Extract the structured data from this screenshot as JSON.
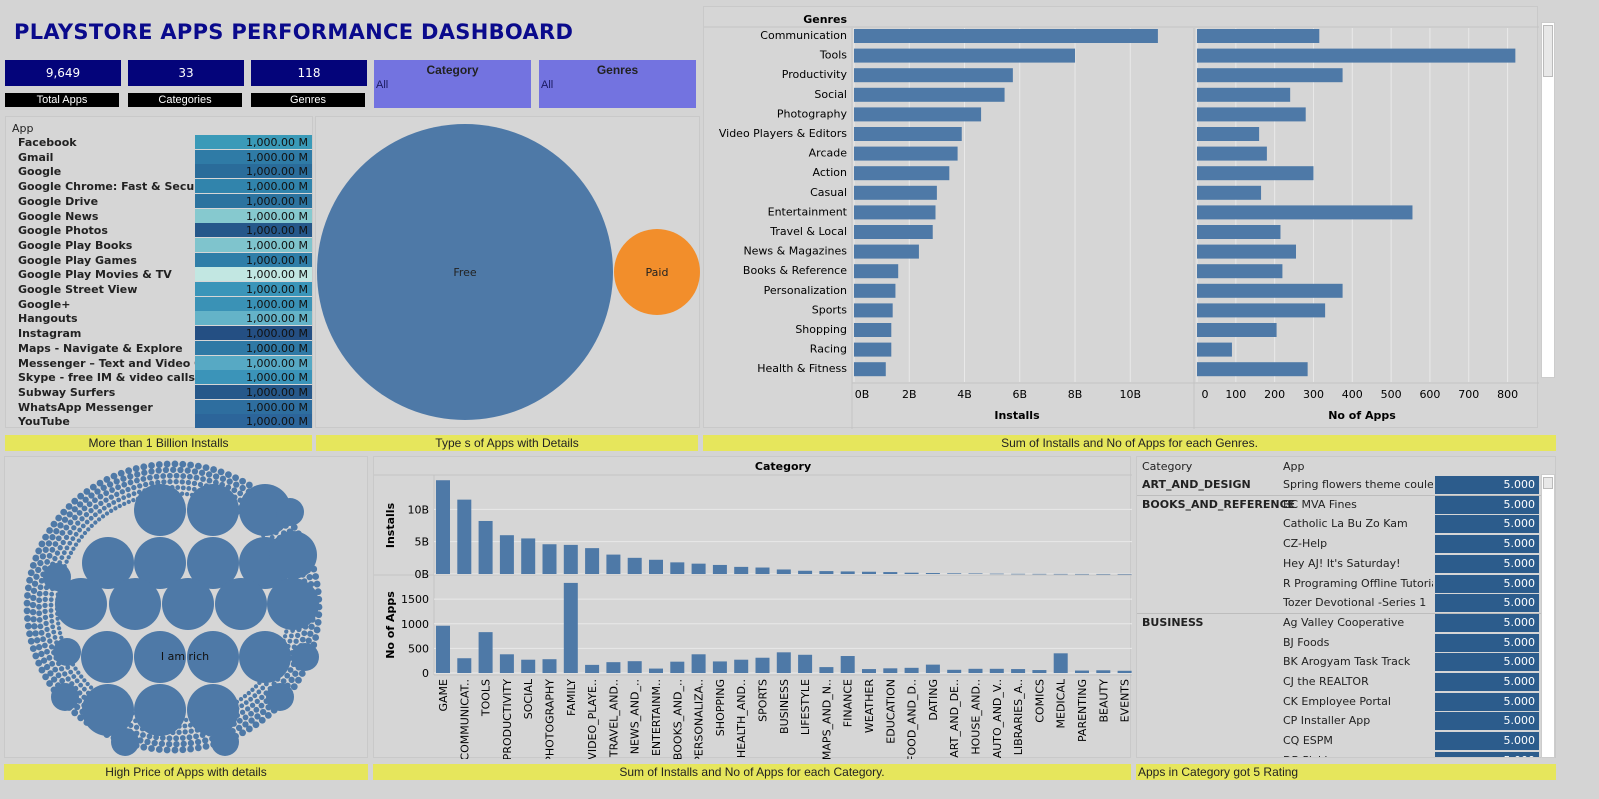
{
  "title": "PLAYSTORE APPS PERFORMANCE DASHBOARD",
  "kpis": [
    {
      "value": "9,649",
      "label": "Total Apps"
    },
    {
      "value": "33",
      "label": "Categories"
    },
    {
      "value": "118",
      "label": "Genres"
    }
  ],
  "filters": [
    {
      "title": "Category",
      "value": "All"
    },
    {
      "title": "Genres",
      "value": "All"
    }
  ],
  "top_apps": {
    "header": "App",
    "rows": [
      {
        "name": "Facebook",
        "value": "1,000.00 M",
        "color": "#3a9ab8"
      },
      {
        "name": "Gmail",
        "value": "1,000.00 M",
        "color": "#2f7ba6"
      },
      {
        "name": "Google",
        "value": "1,000.00 M",
        "color": "#2a6c9a"
      },
      {
        "name": "Google Chrome: Fast & Secure",
        "value": "1,000.00 M",
        "color": "#3184ac"
      },
      {
        "name": "Google Drive",
        "value": "1,000.00 M",
        "color": "#2c739f"
      },
      {
        "name": "Google News",
        "value": "1,000.00 M",
        "color": "#86c9cf"
      },
      {
        "name": "Google Photos",
        "value": "1,000.00 M",
        "color": "#25578a"
      },
      {
        "name": "Google Play Books",
        "value": "1,000.00 M",
        "color": "#7fc4cd"
      },
      {
        "name": "Google Play Games",
        "value": "1,000.00 M",
        "color": "#2f7ea8"
      },
      {
        "name": "Google Play Movies & TV",
        "value": "1,000.00 M",
        "color": "#c2e7e2"
      },
      {
        "name": "Google Street View",
        "value": "1,000.00 M",
        "color": "#3a95b9"
      },
      {
        "name": "Google+",
        "value": "1,000.00 M",
        "color": "#3a92b6"
      },
      {
        "name": "Hangouts",
        "value": "1,000.00 M",
        "color": "#64b3c8"
      },
      {
        "name": "Instagram",
        "value": "1,000.00 M",
        "color": "#244f83"
      },
      {
        "name": "Maps - Navigate & Explore",
        "value": "1,000.00 M",
        "color": "#2f79a5"
      },
      {
        "name": "Messenger – Text and Video Chat f..",
        "value": "1,000.00 M",
        "color": "#57a9c4"
      },
      {
        "name": "Skype - free IM & video calls",
        "value": "1,000.00 M",
        "color": "#3b94b9"
      },
      {
        "name": "Subway Surfers",
        "value": "1,000.00 M",
        "color": "#26588a"
      },
      {
        "name": "WhatsApp Messenger",
        "value": "1,000.00 M",
        "color": "#2e6e9f"
      },
      {
        "name": "YouTube",
        "value": "1,000.00 M",
        "color": "#2c659a"
      }
    ]
  },
  "captions": {
    "top_apps": "More than 1 Billion Installs",
    "types": "Type s of Apps with Details",
    "genres": "Sum of Installs and No of Apps for each Genres.",
    "price": "High Price of Apps with details",
    "category": "Sum of Installs and No of Apps for each Category.",
    "rating": "Apps in Category got 5 Rating"
  },
  "types": {
    "free_label": "Free",
    "paid_label": "Paid",
    "free_color": "#4e79a7",
    "paid_color": "#f28e2b"
  },
  "price_bubble_label": "I am rich",
  "chart_data": [
    {
      "type": "bar",
      "orientation": "horizontal",
      "row_header": "Genres",
      "categories": [
        "Communication",
        "Tools",
        "Productivity",
        "Social",
        "Photography",
        "Video Players & Editors",
        "Arcade",
        "Action",
        "Casual",
        "Entertainment",
        "Travel & Local",
        "News & Magazines",
        "Books & Reference",
        "Personalization",
        "Sports",
        "Shopping",
        "Racing",
        "Health & Fitness"
      ],
      "series": [
        {
          "name": "Installs",
          "values": [
            11000000000,
            8000000000,
            5750000000,
            5450000000,
            4600000000,
            3900000000,
            3750000000,
            3450000000,
            3000000000,
            2950000000,
            2850000000,
            2350000000,
            1600000000,
            1500000000,
            1400000000,
            1350000000,
            1350000000,
            1150000000
          ],
          "xlim": [
            0,
            11800000000
          ],
          "ticks": [
            "0B",
            "2B",
            "4B",
            "6B",
            "8B",
            "10B"
          ],
          "tick_values": [
            0,
            2000000000,
            4000000000,
            6000000000,
            8000000000,
            10000000000
          ]
        },
        {
          "name": "No of Apps",
          "values": [
            315,
            820,
            375,
            240,
            280,
            160,
            180,
            300,
            165,
            555,
            215,
            255,
            220,
            375,
            330,
            205,
            90,
            285
          ],
          "xlim": [
            0,
            850
          ],
          "ticks": [
            "0",
            "100",
            "200",
            "300",
            "400",
            "500",
            "600",
            "700",
            "800"
          ],
          "tick_values": [
            0,
            100,
            200,
            300,
            400,
            500,
            600,
            700,
            800
          ]
        }
      ]
    },
    {
      "type": "bar",
      "title": "Category",
      "categories": [
        "GAME",
        "COMMUNICAT..",
        "TOOLS",
        "PRODUCTIVITY",
        "SOCIAL",
        "PHOTOGRAPHY",
        "FAMILY",
        "VIDEO_PLAYE..",
        "TRAVEL_AND..",
        "NEWS_AND_..",
        "ENTERTAINM..",
        "BOOKS_AND_..",
        "PERSONALIZA..",
        "SHOPPING",
        "HEALTH_AND..",
        "SPORTS",
        "BUSINESS",
        "LIFESTYLE",
        "MAPS_AND_N..",
        "FINANCE",
        "WEATHER",
        "EDUCATION",
        "FOOD_AND_D..",
        "DATING",
        "ART_AND_DE..",
        "HOUSE_AND..",
        "AUTO_AND_V..",
        "LIBRARIES_A..",
        "COMICS",
        "MEDICAL",
        "PARENTING",
        "BEAUTY",
        "EVENTS"
      ],
      "series": [
        {
          "name": "Installs",
          "values": [
            14500000000,
            11500000000,
            8200000000,
            6000000000,
            5500000000,
            4600000000,
            4500000000,
            4000000000,
            3000000000,
            2500000000,
            2200000000,
            1800000000,
            1600000000,
            1400000000,
            1100000000,
            1000000000,
            700000000,
            500000000,
            450000000,
            400000000,
            350000000,
            300000000,
            200000000,
            150000000,
            100000000,
            80000000,
            50000000,
            30000000,
            20000000,
            15000000,
            10000000,
            5000000,
            3000000
          ],
          "yticks": [
            "0B",
            "5B",
            "10B"
          ],
          "ytick_values": [
            0,
            5000000000,
            10000000000
          ],
          "ylim": [
            0,
            15000000000
          ]
        },
        {
          "name": "No of Apps",
          "values": [
            960,
            300,
            830,
            380,
            270,
            280,
            1830,
            165,
            220,
            240,
            90,
            230,
            380,
            235,
            270,
            310,
            420,
            370,
            120,
            345,
            80,
            95,
            105,
            170,
            65,
            85,
            85,
            80,
            60,
            400,
            50,
            55,
            45
          ],
          "yticks": [
            "0",
            "500",
            "1000",
            "1500"
          ],
          "ytick_values": [
            0,
            500,
            1000,
            1500
          ],
          "ylim": [
            0,
            1950
          ]
        }
      ]
    }
  ],
  "rating_table": {
    "col1": "Category",
    "col2": "App",
    "groups": [
      {
        "category": "ART_AND_DESIGN",
        "apps": [
          "Spring flowers theme couleu.."
        ]
      },
      {
        "category": "BOOKS_AND_REFERENCE",
        "apps": [
          "BC MVA Fines",
          "Catholic La Bu Zo Kam",
          "CZ-Help",
          "Hey AJ! It's Saturday!",
          "R Programing Offline Tutorial",
          "Tozer Devotional -Series 1"
        ]
      },
      {
        "category": "BUSINESS",
        "apps": [
          "Ag Valley Cooperative",
          "BJ Foods",
          "BK Arogyam Task Track",
          "CJ the REALTOR",
          "CK Employee Portal",
          "CP Installer App",
          "CQ ESPM",
          "DB Pickles"
        ]
      }
    ],
    "rating": "5.000"
  }
}
